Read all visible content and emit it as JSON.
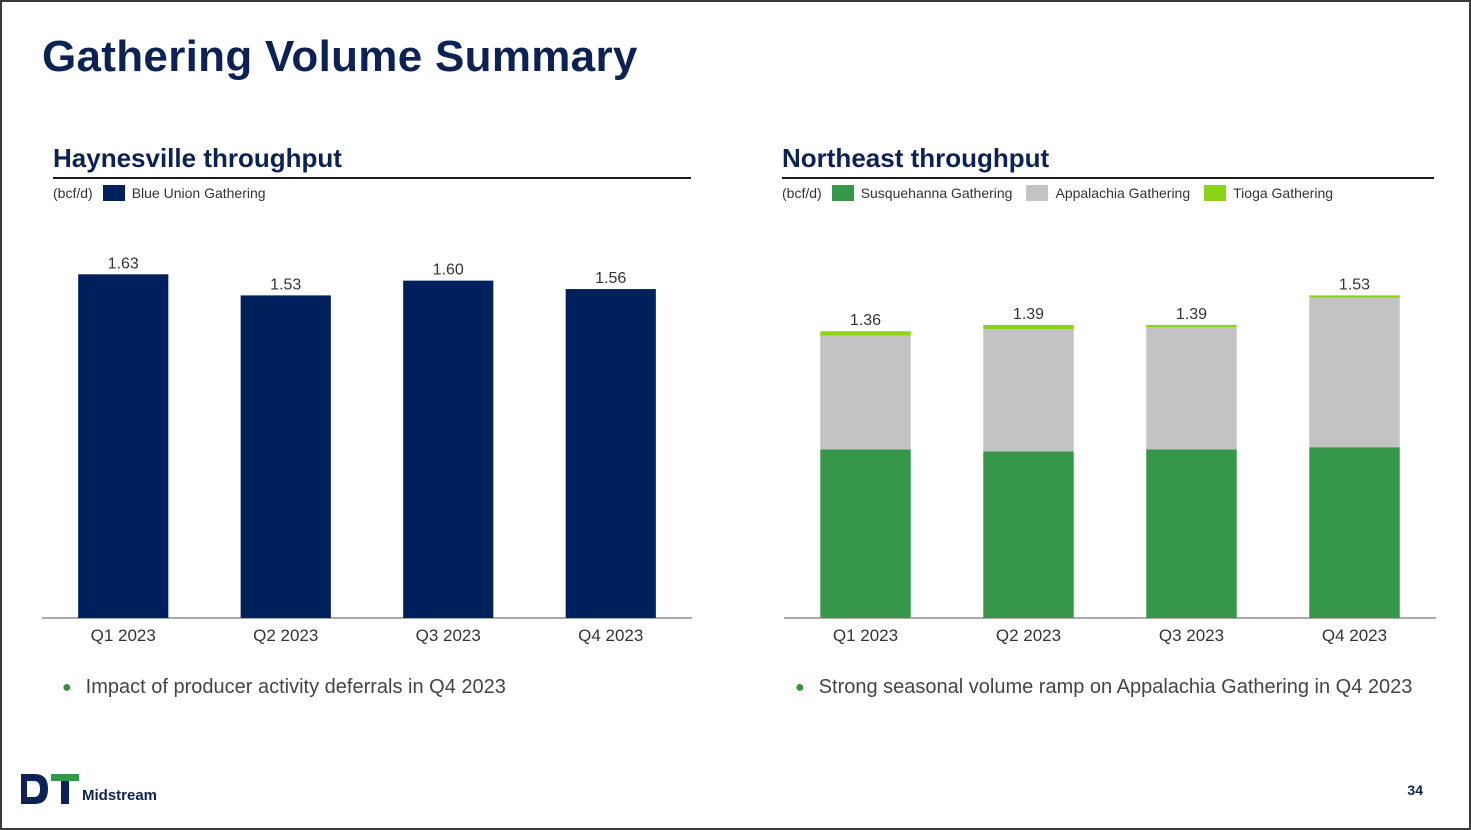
{
  "page": {
    "title": "Gathering Volume Summary",
    "page_number": "34",
    "logo_text": "Midstream",
    "logo_mark": "DT"
  },
  "left": {
    "title": "Haynesville throughput",
    "unit": "(bcf/d)",
    "note": "Impact of producer activity deferrals in Q4 2023"
  },
  "right": {
    "title": "Northeast throughput",
    "unit": "(bcf/d)",
    "note": "Strong seasonal volume ramp on Appalachia Gathering in Q4 2023"
  },
  "colors": {
    "navy": "#00205b",
    "green": "#36974a",
    "gray": "#c3c3c3",
    "lime": "#8cd31a"
  },
  "chart_data": [
    {
      "type": "bar",
      "title": "Haynesville throughput",
      "ylabel": "(bcf/d)",
      "categories": [
        "Q1 2023",
        "Q2 2023",
        "Q3 2023",
        "Q4 2023"
      ],
      "series": [
        {
          "name": "Blue Union Gathering",
          "values": [
            1.63,
            1.53,
            1.6,
            1.56
          ],
          "color": "#00205b"
        }
      ],
      "labels": [
        "1.63",
        "1.53",
        "1.60",
        "1.56"
      ],
      "ylim": [
        0,
        1.75
      ]
    },
    {
      "type": "bar",
      "stacked": true,
      "title": "Northeast throughput",
      "ylabel": "(bcf/d)",
      "categories": [
        "Q1 2023",
        "Q2 2023",
        "Q3 2023",
        "Q4 2023"
      ],
      "series": [
        {
          "name": "Susquehanna Gathering",
          "values": [
            0.8,
            0.79,
            0.8,
            0.81
          ],
          "color": "#36974a"
        },
        {
          "name": "Appalachia Gathering",
          "values": [
            0.54,
            0.58,
            0.58,
            0.71
          ],
          "color": "#c3c3c3"
        },
        {
          "name": "Tioga Gathering",
          "values": [
            0.02,
            0.02,
            0.01,
            0.01
          ],
          "color": "#8cd31a"
        }
      ],
      "totals": [
        "1.36",
        "1.39",
        "1.39",
        "1.53"
      ],
      "ylim": [
        0,
        1.75
      ]
    }
  ]
}
